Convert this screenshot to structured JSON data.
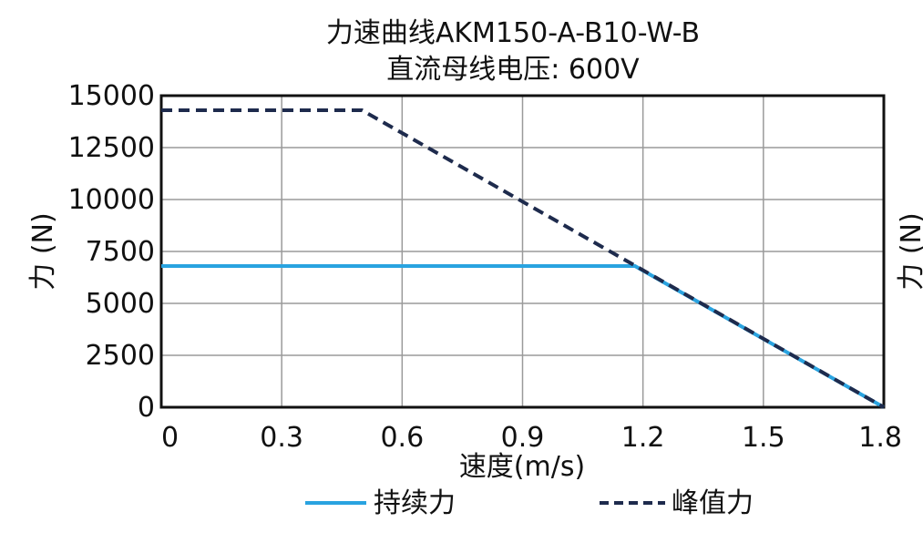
{
  "chart_data": {
    "type": "line",
    "title": "力速曲线AKM150-A-B10-W-B",
    "subtitle": "直流母线电压: 600V",
    "xlabel": "速度(m/s)",
    "ylabel": "力 (N)",
    "right_ylabel": "力 (N)",
    "xlim": [
      0,
      1.8
    ],
    "ylim": [
      0,
      15000
    ],
    "xticks": [
      "0",
      "0.3",
      "0.6",
      "0.9",
      "1.2",
      "1.5",
      "1.8"
    ],
    "yticks": [
      "0",
      "2500",
      "5000",
      "7500",
      "10000",
      "12500",
      "15000"
    ],
    "grid": true,
    "legend_position": "bottom",
    "series": [
      {
        "name": "持续力",
        "color": "#29a3e0",
        "style": "solid",
        "x": [
          0,
          1.18,
          1.8
        ],
        "y": [
          6800,
          6800,
          0
        ]
      },
      {
        "name": "峰值力",
        "color": "#1e2b4d",
        "style": "dashed",
        "x": [
          0,
          0.5,
          1.8
        ],
        "y": [
          14300,
          14300,
          0
        ]
      }
    ]
  }
}
